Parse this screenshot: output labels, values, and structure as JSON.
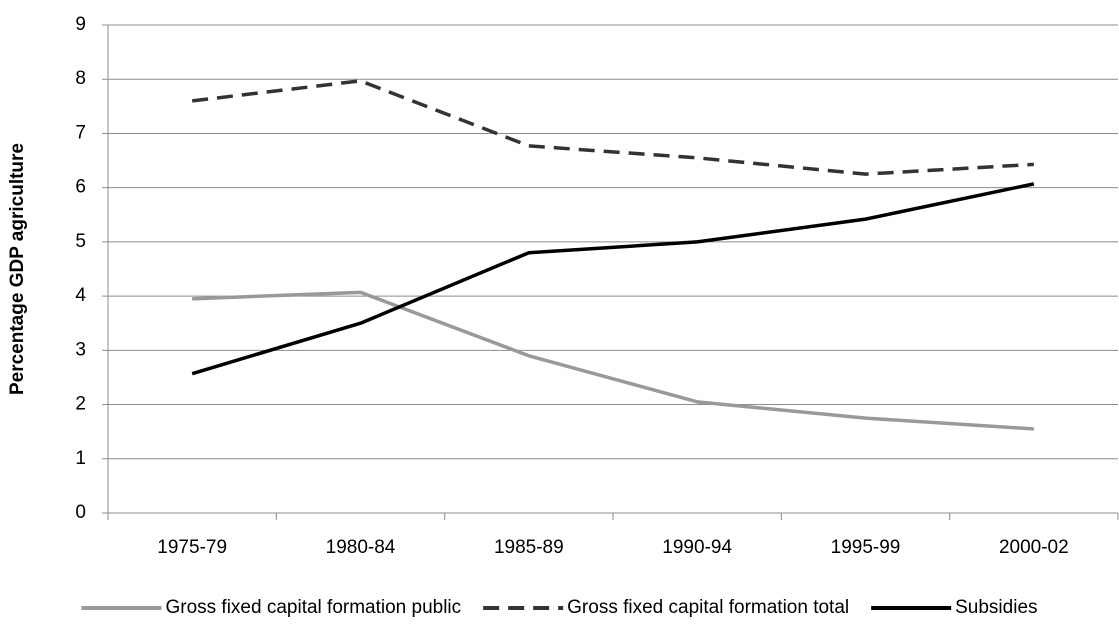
{
  "chart_data": {
    "type": "line",
    "y_axis_label": "Percentage GDP agriculture",
    "categories": [
      "1975-79",
      "1980-84",
      "1985-89",
      "1990-94",
      "1995-99",
      "2000-02"
    ],
    "series": [
      {
        "name": "Gross fixed capital formation public",
        "color": "#999999",
        "style": "solid",
        "values": [
          3.95,
          4.07,
          2.9,
          2.05,
          1.75,
          1.55
        ]
      },
      {
        "name": "Gross fixed capital formation total",
        "color": "#333333",
        "style": "dashed",
        "values": [
          7.6,
          7.97,
          6.77,
          6.55,
          6.25,
          6.43
        ]
      },
      {
        "name": "Subsidies",
        "color": "#000000",
        "style": "solid",
        "values": [
          2.57,
          3.5,
          4.8,
          5.0,
          5.42,
          6.07
        ]
      }
    ],
    "ylim": [
      0,
      9
    ],
    "yticks": [
      0,
      1,
      2,
      3,
      4,
      5,
      6,
      7,
      8,
      9
    ],
    "grid": true,
    "legend": "bottom"
  }
}
